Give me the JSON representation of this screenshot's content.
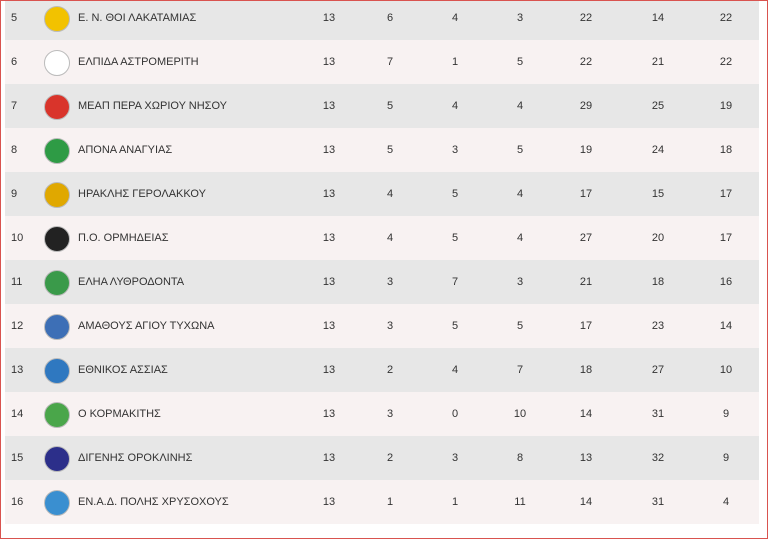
{
  "table": {
    "rows": [
      [
        5,
        "Ε. Ν. ΘΟΙ ΛΑΚΑΤΑΜΙΑΣ",
        13,
        6,
        4,
        3,
        22,
        14,
        22
      ],
      [
        6,
        "ΕΛΠΙΔΑ ΑΣΤΡΟΜΕΡΙΤΗ",
        13,
        7,
        1,
        5,
        22,
        21,
        22
      ],
      [
        7,
        "ΜΕΑΠ ΠΕΡΑ ΧΩΡΙΟΥ ΝΗΣΟΥ",
        13,
        5,
        4,
        4,
        29,
        25,
        19
      ],
      [
        8,
        "ΑΠΟΝΑ ΑΝΑΓΥΙΑΣ",
        13,
        5,
        3,
        5,
        19,
        24,
        18
      ],
      [
        9,
        "ΗΡΑΚΛΗΣ ΓΕΡΟΛΑΚΚΟΥ",
        13,
        4,
        5,
        4,
        17,
        15,
        17
      ],
      [
        10,
        "Π.Ο. ΟΡΜΗΔΕΙΑΣ",
        13,
        4,
        5,
        4,
        27,
        20,
        17
      ],
      [
        11,
        "ΕΛΗΑ ΛΥΘΡΟΔΟΝΤΑ",
        13,
        3,
        7,
        3,
        21,
        18,
        16
      ],
      [
        12,
        "ΑΜΑΘΟΥΣ ΑΓΙΟΥ ΤΥΧΩΝΑ",
        13,
        3,
        5,
        5,
        17,
        23,
        14
      ],
      [
        13,
        "ΕΘΝΙΚΟΣ ΑΣΣΙΑΣ",
        13,
        2,
        4,
        7,
        18,
        27,
        10
      ],
      [
        14,
        "Ο ΚΟΡΜΑΚΙΤΗΣ",
        13,
        3,
        0,
        10,
        14,
        31,
        9
      ],
      [
        15,
        "ΔΙΓΕΝΗΣ ΟΡΟΚΛΙΝΗΣ",
        13,
        2,
        3,
        8,
        13,
        32,
        9
      ],
      [
        16,
        "ΕΝ.Α.Δ. ΠΟΛΗΣ ΧΡΥΣΟΧΟΥΣ",
        13,
        1,
        1,
        11,
        14,
        31,
        4
      ]
    ]
  }
}
